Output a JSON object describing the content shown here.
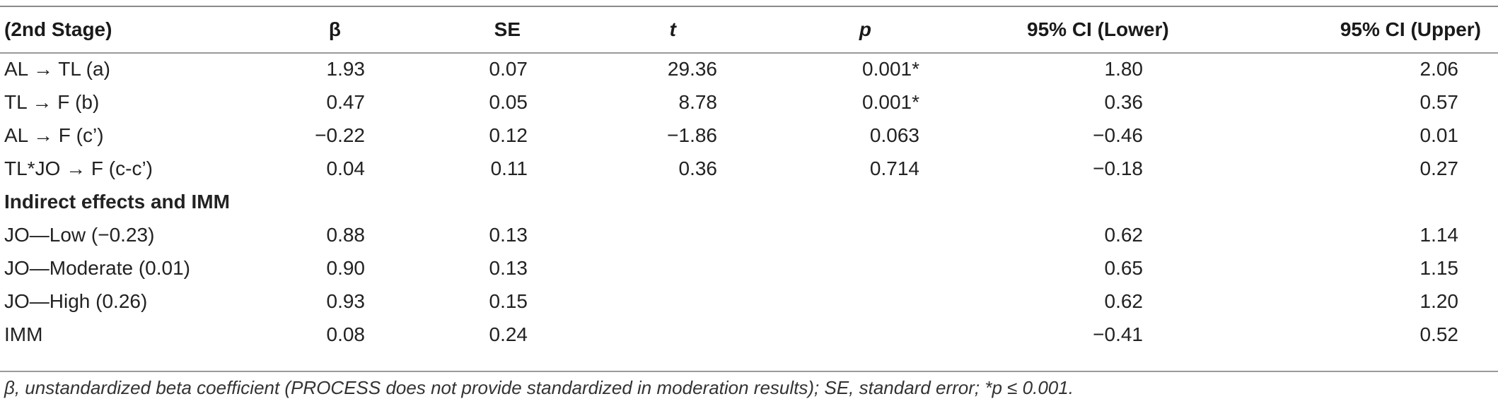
{
  "table": {
    "headers": [
      "(2nd Stage)",
      "β",
      "SE",
      "t",
      "p",
      "95% CI (Lower)",
      "95% CI (Upper)"
    ],
    "rows": [
      {
        "label": "AL → TL (a)",
        "beta": "1.93",
        "se": "0.07",
        "t": "29.36",
        "p": "0.001*",
        "ci_lower": "1.80",
        "ci_upper": "2.06"
      },
      {
        "label": "TL → F (b)",
        "beta": "0.47",
        "se": "0.05",
        "t": "8.78",
        "p": "0.001*",
        "ci_lower": "0.36",
        "ci_upper": "0.57"
      },
      {
        "label": "AL → F (c’)",
        "beta": "−0.22",
        "se": "0.12",
        "t": "−1.86",
        "p": "0.063",
        "ci_lower": "−0.46",
        "ci_upper": "0.01"
      },
      {
        "label": "TL*JO → F (c-c’)",
        "beta": "0.04",
        "se": "0.11",
        "t": "0.36",
        "p": "0.714",
        "ci_lower": "−0.18",
        "ci_upper": "0.27"
      }
    ],
    "section_title": "Indirect effects and IMM",
    "indirect_rows": [
      {
        "label": "JO—Low (−0.23)",
        "beta": "0.88",
        "se": "0.13",
        "ci_lower": "0.62",
        "ci_upper": "1.14"
      },
      {
        "label": "JO—Moderate (0.01)",
        "beta": "0.90",
        "se": "0.13",
        "ci_lower": "0.65",
        "ci_upper": "1.15"
      },
      {
        "label": "JO—High (0.26)",
        "beta": "0.93",
        "se": "0.15",
        "ci_lower": "0.62",
        "ci_upper": "1.20"
      },
      {
        "label": "IMM",
        "beta": "0.08",
        "se": "0.24",
        "ci_lower": "−0.41",
        "ci_upper": "0.52"
      }
    ]
  },
  "footnote": "β, unstandardized beta coefficient (PROCESS does not provide standardized in moderation results); SE, standard error; *p ≤ 0.001."
}
